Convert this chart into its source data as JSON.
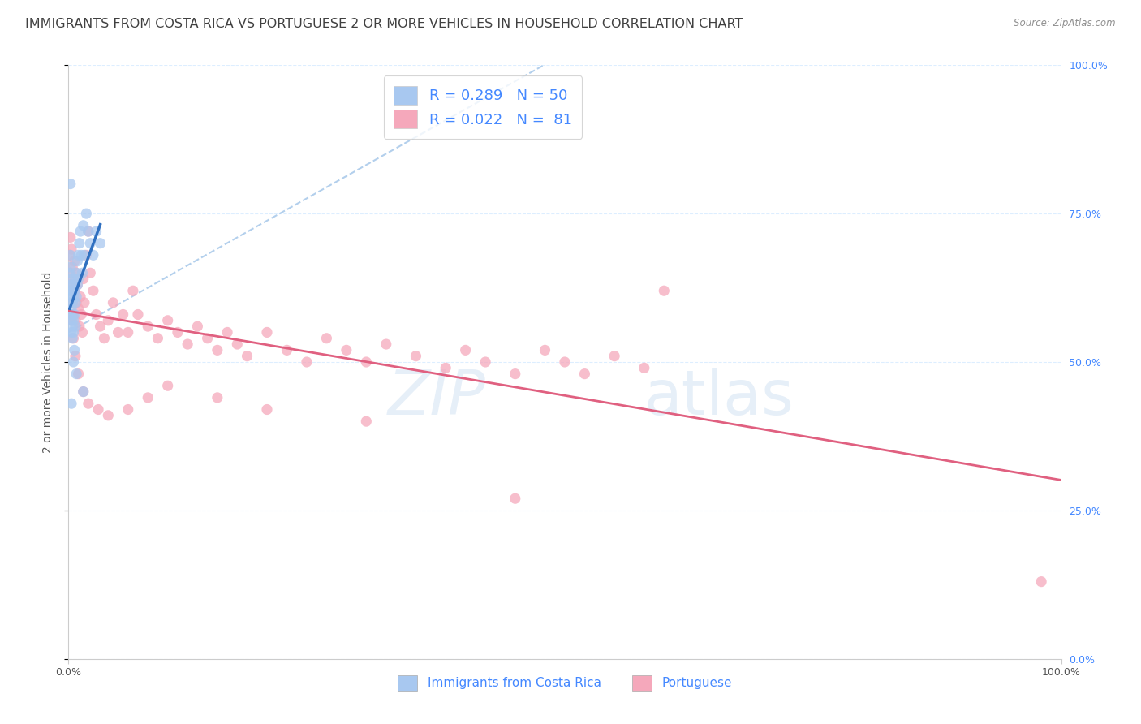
{
  "title": "IMMIGRANTS FROM COSTA RICA VS PORTUGUESE 2 OR MORE VEHICLES IN HOUSEHOLD CORRELATION CHART",
  "source": "Source: ZipAtlas.com",
  "ylabel": "2 or more Vehicles in Household",
  "xlim": [
    0.0,
    1.0
  ],
  "ylim": [
    0.0,
    1.0
  ],
  "ytick_labels": [
    "0.0%",
    "25.0%",
    "50.0%",
    "75.0%",
    "100.0%"
  ],
  "ytick_positions": [
    0.0,
    0.25,
    0.5,
    0.75,
    1.0
  ],
  "xtick_labels": [
    "0.0%",
    "100.0%"
  ],
  "xtick_positions": [
    0.0,
    1.0
  ],
  "blue_color": "#A8C8F0",
  "pink_color": "#F5A8BB",
  "blue_line_color": "#3070C0",
  "pink_line_color": "#E06080",
  "dashed_line_color": "#A0C4E8",
  "title_color": "#404040",
  "source_color": "#909090",
  "right_axis_color": "#4488FF",
  "legend_R_N_color": "#4488FF",
  "R_blue": 0.289,
  "N_blue": 50,
  "R_pink": 0.022,
  "N_pink": 81,
  "blue_scatter_x": [
    0.001,
    0.001,
    0.001,
    0.002,
    0.002,
    0.002,
    0.002,
    0.003,
    0.003,
    0.003,
    0.003,
    0.003,
    0.004,
    0.004,
    0.004,
    0.004,
    0.004,
    0.005,
    0.005,
    0.005,
    0.005,
    0.006,
    0.006,
    0.006,
    0.007,
    0.007,
    0.007,
    0.008,
    0.008,
    0.009,
    0.009,
    0.01,
    0.01,
    0.011,
    0.012,
    0.013,
    0.014,
    0.015,
    0.016,
    0.018,
    0.02,
    0.022,
    0.025,
    0.028,
    0.032,
    0.002,
    0.003,
    0.005,
    0.008,
    0.015
  ],
  "blue_scatter_y": [
    0.62,
    0.6,
    0.65,
    0.63,
    0.58,
    0.66,
    0.68,
    0.61,
    0.64,
    0.55,
    0.59,
    0.57,
    0.62,
    0.58,
    0.56,
    0.6,
    0.54,
    0.61,
    0.63,
    0.57,
    0.55,
    0.62,
    0.58,
    0.52,
    0.64,
    0.6,
    0.56,
    0.65,
    0.61,
    0.67,
    0.63,
    0.68,
    0.64,
    0.7,
    0.72,
    0.68,
    0.65,
    0.73,
    0.68,
    0.75,
    0.72,
    0.7,
    0.68,
    0.72,
    0.7,
    0.8,
    0.43,
    0.5,
    0.48,
    0.45
  ],
  "pink_scatter_x": [
    0.001,
    0.002,
    0.002,
    0.003,
    0.003,
    0.004,
    0.004,
    0.005,
    0.005,
    0.006,
    0.006,
    0.007,
    0.008,
    0.008,
    0.009,
    0.01,
    0.011,
    0.012,
    0.013,
    0.014,
    0.015,
    0.016,
    0.018,
    0.02,
    0.022,
    0.025,
    0.028,
    0.032,
    0.036,
    0.04,
    0.045,
    0.05,
    0.055,
    0.06,
    0.065,
    0.07,
    0.08,
    0.09,
    0.1,
    0.11,
    0.12,
    0.13,
    0.14,
    0.15,
    0.16,
    0.17,
    0.18,
    0.2,
    0.22,
    0.24,
    0.26,
    0.28,
    0.3,
    0.32,
    0.35,
    0.38,
    0.4,
    0.42,
    0.45,
    0.48,
    0.5,
    0.52,
    0.55,
    0.58,
    0.6,
    0.003,
    0.005,
    0.007,
    0.01,
    0.015,
    0.02,
    0.03,
    0.04,
    0.06,
    0.08,
    0.1,
    0.15,
    0.2,
    0.3,
    0.45,
    0.98
  ],
  "pink_scatter_y": [
    0.68,
    0.71,
    0.65,
    0.69,
    0.63,
    0.66,
    0.6,
    0.64,
    0.58,
    0.67,
    0.62,
    0.57,
    0.65,
    0.6,
    0.63,
    0.59,
    0.56,
    0.61,
    0.58,
    0.55,
    0.64,
    0.6,
    0.68,
    0.72,
    0.65,
    0.62,
    0.58,
    0.56,
    0.54,
    0.57,
    0.6,
    0.55,
    0.58,
    0.55,
    0.62,
    0.58,
    0.56,
    0.54,
    0.57,
    0.55,
    0.53,
    0.56,
    0.54,
    0.52,
    0.55,
    0.53,
    0.51,
    0.55,
    0.52,
    0.5,
    0.54,
    0.52,
    0.5,
    0.53,
    0.51,
    0.49,
    0.52,
    0.5,
    0.48,
    0.52,
    0.5,
    0.48,
    0.51,
    0.49,
    0.62,
    0.57,
    0.54,
    0.51,
    0.48,
    0.45,
    0.43,
    0.42,
    0.41,
    0.42,
    0.44,
    0.46,
    0.44,
    0.42,
    0.4,
    0.27,
    0.13
  ],
  "background_color": "#FFFFFF",
  "grid_color": "#DDEEFF",
  "title_fontsize": 11.5,
  "label_fontsize": 10,
  "tick_fontsize": 9,
  "legend_fontsize": 13
}
